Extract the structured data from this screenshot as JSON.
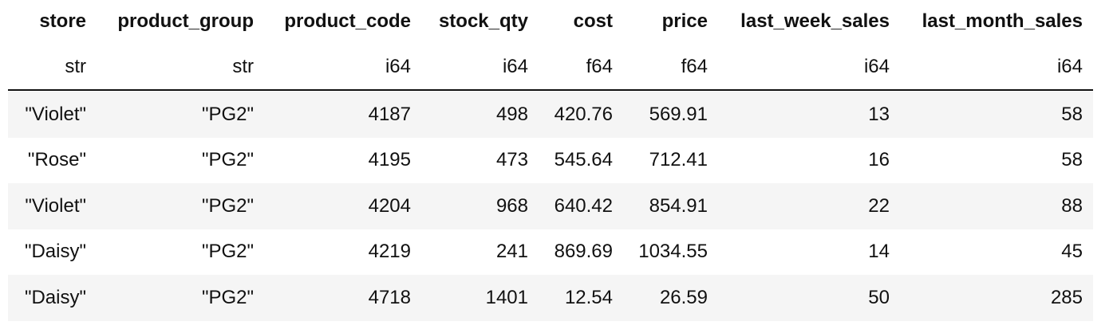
{
  "table": {
    "columns": [
      "store",
      "product_group",
      "product_code",
      "stock_qty",
      "cost",
      "price",
      "last_week_sales",
      "last_month_sales"
    ],
    "dtypes": [
      "str",
      "str",
      "i64",
      "i64",
      "f64",
      "f64",
      "i64",
      "i64"
    ],
    "rows": [
      [
        "\"Violet\"",
        "\"PG2\"",
        4187,
        498,
        420.76,
        569.91,
        13,
        58
      ],
      [
        "\"Rose\"",
        "\"PG2\"",
        4195,
        473,
        545.64,
        712.41,
        16,
        58
      ],
      [
        "\"Violet\"",
        "\"PG2\"",
        4204,
        968,
        640.42,
        854.91,
        22,
        88
      ],
      [
        "\"Daisy\"",
        "\"PG2\"",
        4219,
        241,
        869.69,
        1034.55,
        14,
        45
      ],
      [
        "\"Daisy\"",
        "\"PG2\"",
        4718,
        1401,
        12.54,
        26.59,
        50,
        285
      ]
    ]
  }
}
